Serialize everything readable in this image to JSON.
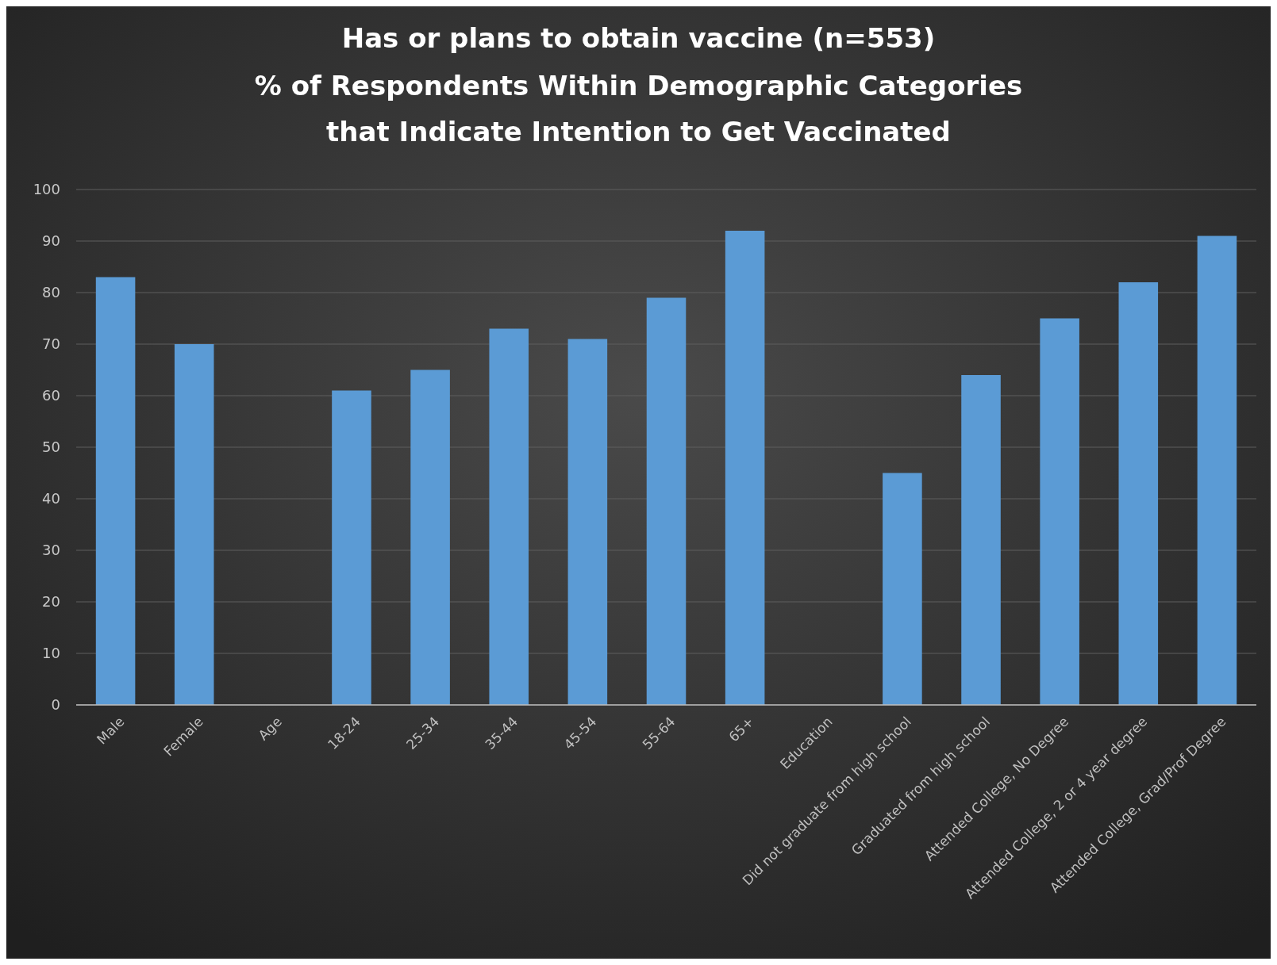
{
  "chart_data": {
    "type": "bar",
    "title": "Has or plans to obtain vaccine (n=553)",
    "subtitle": "% of Respondents Within Demographic Categories\nthat Indicate Intention to Get Vaccinated",
    "categories": [
      "Male",
      "Female",
      "Age",
      "18-24",
      "25-34",
      "35-44",
      "45-54",
      "55-64",
      "65+",
      "Education",
      "Did not graduate from high school",
      "Graduated from high school",
      "Attended College, No Degree",
      "Attended College, 2 or 4 year degree",
      "Attended College, Grad/Prof Degree"
    ],
    "values": [
      83,
      70,
      null,
      61,
      65,
      73,
      71,
      79,
      92,
      null,
      45,
      64,
      75,
      82,
      91
    ],
    "color": "#5b9bd5",
    "ylim": [
      0,
      100
    ],
    "yticks": [
      0,
      10,
      20,
      30,
      40,
      50,
      60,
      70,
      80,
      90,
      100
    ],
    "grid": "y"
  }
}
